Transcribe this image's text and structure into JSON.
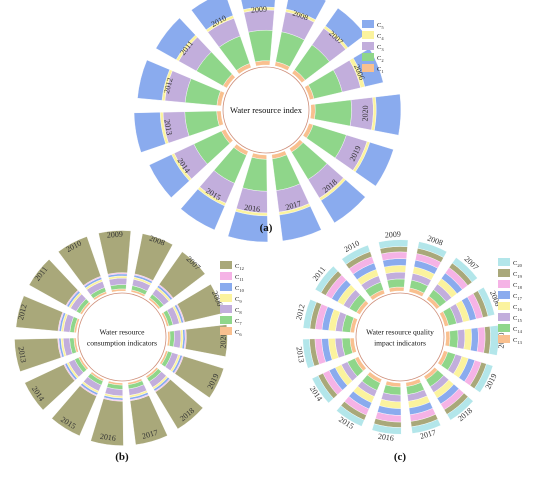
{
  "colors": {
    "C1": "#f9c08f",
    "C2": "#8fd68a",
    "C3": "#c2aedc",
    "C4": "#fbf39e",
    "C5": "#8aabee",
    "C6": "#f9c08f",
    "C7": "#8fd68a",
    "C8": "#c2aedc",
    "C9": "#fbf39e",
    "C10": "#8aabee",
    "C11": "#f5b3e6",
    "C12": "#a9a87a",
    "C13": "#f9c08f",
    "C14": "#8fd68a",
    "C15": "#c2aedc",
    "C16": "#fbf39e",
    "C17": "#8aabee",
    "C18": "#f5b3e6",
    "C19": "#a9a87a",
    "C20": "#b3e6ea"
  },
  "chart_data": [
    {
      "type": "radial-stacked-bar",
      "panel_label": "(a)",
      "center_label": [
        "Water resource index"
      ],
      "categories": [
        "2006",
        "2007",
        "2008",
        "2009",
        "2010",
        "2011",
        "2012",
        "2013",
        "2014",
        "2015",
        "2016",
        "2017",
        "2018",
        "2019",
        "2020"
      ],
      "legend": [
        {
          "key": "C5",
          "label": "C",
          "sub": "5"
        },
        {
          "key": "C4",
          "label": "C",
          "sub": "4"
        },
        {
          "key": "C3",
          "label": "C",
          "sub": "3"
        },
        {
          "key": "C2",
          "label": "C",
          "sub": "2"
        },
        {
          "key": "C1",
          "label": "C",
          "sub": "1"
        }
      ],
      "series": [
        {
          "key": "C1",
          "values": [
            0.03,
            0.03,
            0.03,
            0.03,
            0.03,
            0.03,
            0.03,
            0.03,
            0.03,
            0.03,
            0.03,
            0.03,
            0.03,
            0.03,
            0.03
          ]
        },
        {
          "key": "C2",
          "values": [
            0.2,
            0.21,
            0.21,
            0.21,
            0.2,
            0.21,
            0.22,
            0.22,
            0.21,
            0.21,
            0.22,
            0.22,
            0.22,
            0.24,
            0.25
          ]
        },
        {
          "key": "C3",
          "values": [
            0.13,
            0.14,
            0.14,
            0.14,
            0.13,
            0.14,
            0.14,
            0.15,
            0.15,
            0.15,
            0.15,
            0.15,
            0.15,
            0.15,
            0.15
          ]
        },
        {
          "key": "C4",
          "values": [
            0.03,
            0.02,
            0.02,
            0.02,
            0.02,
            0.02,
            0.02,
            0.02,
            0.02,
            0.02,
            0.02,
            0.02,
            0.02,
            0.02,
            0.02
          ]
        },
        {
          "key": "C5",
          "values": [
            0.13,
            0.15,
            0.15,
            0.16,
            0.17,
            0.16,
            0.17,
            0.18,
            0.17,
            0.18,
            0.18,
            0.18,
            0.18,
            0.17,
            0.17
          ]
        }
      ],
      "ylim": [
        0,
        1
      ]
    },
    {
      "type": "radial-stacked-bar",
      "panel_label": "(b)",
      "center_label": [
        "Water resource",
        "consumption indicators"
      ],
      "categories": [
        "2006",
        "2007",
        "2008",
        "2009",
        "2010",
        "2011",
        "2012",
        "2013",
        "2014",
        "2015",
        "2016",
        "2017",
        "2018",
        "2019",
        "2020"
      ],
      "legend": [
        {
          "key": "C12",
          "label": "C",
          "sub": "12"
        },
        {
          "key": "C11",
          "label": "C",
          "sub": "11"
        },
        {
          "key": "C10",
          "label": "C",
          "sub": "10"
        },
        {
          "key": "C9",
          "label": "C",
          "sub": "9"
        },
        {
          "key": "C8",
          "label": "C",
          "sub": "8"
        },
        {
          "key": "C7",
          "label": "C",
          "sub": "7"
        },
        {
          "key": "C6",
          "label": "C",
          "sub": "6"
        }
      ],
      "series": [
        {
          "key": "C6",
          "values": [
            0.02,
            0.02,
            0.02,
            0.02,
            0.02,
            0.02,
            0.02,
            0.02,
            0.02,
            0.02,
            0.02,
            0.02,
            0.02,
            0.02,
            0.02
          ]
        },
        {
          "key": "C7",
          "values": [
            0.04,
            0.04,
            0.04,
            0.04,
            0.04,
            0.04,
            0.04,
            0.04,
            0.04,
            0.04,
            0.04,
            0.04,
            0.04,
            0.04,
            0.04
          ]
        },
        {
          "key": "C8",
          "values": [
            0.06,
            0.06,
            0.06,
            0.06,
            0.06,
            0.06,
            0.06,
            0.06,
            0.06,
            0.06,
            0.06,
            0.06,
            0.06,
            0.06,
            0.06
          ]
        },
        {
          "key": "C9",
          "values": [
            0.02,
            0.02,
            0.02,
            0.02,
            0.02,
            0.02,
            0.02,
            0.02,
            0.02,
            0.02,
            0.02,
            0.02,
            0.02,
            0.02,
            0.02
          ]
        },
        {
          "key": "C10",
          "values": [
            0.02,
            0.02,
            0.02,
            0.02,
            0.02,
            0.02,
            0.02,
            0.02,
            0.02,
            0.02,
            0.02,
            0.02,
            0.02,
            0.02,
            0.02
          ]
        },
        {
          "key": "C11",
          "values": [
            0.01,
            0.01,
            0.01,
            0.01,
            0.01,
            0.01,
            0.01,
            0.01,
            0.01,
            0.01,
            0.01,
            0.01,
            0.01,
            0.01,
            0.01
          ]
        },
        {
          "key": "C12",
          "values": [
            0.36,
            0.37,
            0.38,
            0.39,
            0.39,
            0.39,
            0.39,
            0.4,
            0.4,
            0.4,
            0.41,
            0.41,
            0.4,
            0.39,
            0.38
          ]
        }
      ],
      "ylim": [
        0,
        1
      ]
    },
    {
      "type": "radial-stacked-bar",
      "panel_label": "(c)",
      "center_label": [
        "Water resource quality",
        "impact indicators"
      ],
      "categories": [
        "2006",
        "2007",
        "2008",
        "2009",
        "2010",
        "2011",
        "2012",
        "2013",
        "2014",
        "2015",
        "2016",
        "2017",
        "2018",
        "2019",
        "2020"
      ],
      "legend": [
        {
          "key": "C20",
          "label": "C",
          "sub": "20"
        },
        {
          "key": "C19",
          "label": "C",
          "sub": "19"
        },
        {
          "key": "C18",
          "label": "C",
          "sub": "18"
        },
        {
          "key": "C17",
          "label": "C",
          "sub": "17"
        },
        {
          "key": "C16",
          "label": "C",
          "sub": "16"
        },
        {
          "key": "C15",
          "label": "C",
          "sub": "15"
        },
        {
          "key": "C14",
          "label": "C",
          "sub": "14"
        },
        {
          "key": "C13",
          "label": "C",
          "sub": "13"
        }
      ],
      "series": [
        {
          "key": "C13",
          "values": [
            0.03,
            0.03,
            0.03,
            0.03,
            0.03,
            0.03,
            0.03,
            0.03,
            0.03,
            0.03,
            0.03,
            0.03,
            0.03,
            0.03,
            0.03
          ]
        },
        {
          "key": "C14",
          "values": [
            0.06,
            0.06,
            0.06,
            0.06,
            0.06,
            0.06,
            0.06,
            0.06,
            0.06,
            0.06,
            0.06,
            0.06,
            0.06,
            0.06,
            0.06
          ]
        },
        {
          "key": "C15",
          "values": [
            0.05,
            0.05,
            0.05,
            0.05,
            0.05,
            0.05,
            0.05,
            0.05,
            0.05,
            0.05,
            0.05,
            0.05,
            0.05,
            0.05,
            0.05
          ]
        },
        {
          "key": "C16",
          "values": [
            0.05,
            0.05,
            0.05,
            0.05,
            0.05,
            0.05,
            0.05,
            0.05,
            0.05,
            0.05,
            0.05,
            0.05,
            0.05,
            0.05,
            0.05
          ]
        },
        {
          "key": "C17",
          "values": [
            0.05,
            0.05,
            0.05,
            0.05,
            0.05,
            0.05,
            0.05,
            0.05,
            0.05,
            0.05,
            0.05,
            0.05,
            0.05,
            0.05,
            0.05
          ]
        },
        {
          "key": "C18",
          "values": [
            0.05,
            0.05,
            0.05,
            0.05,
            0.05,
            0.05,
            0.05,
            0.05,
            0.05,
            0.05,
            0.05,
            0.05,
            0.05,
            0.05,
            0.05
          ]
        },
        {
          "key": "C19",
          "values": [
            0.04,
            0.04,
            0.04,
            0.04,
            0.04,
            0.04,
            0.04,
            0.04,
            0.04,
            0.04,
            0.04,
            0.04,
            0.04,
            0.04,
            0.04
          ]
        },
        {
          "key": "C20",
          "values": [
            0.05,
            0.05,
            0.05,
            0.05,
            0.05,
            0.05,
            0.05,
            0.05,
            0.05,
            0.05,
            0.05,
            0.05,
            0.05,
            0.05,
            0.06
          ]
        }
      ],
      "ylim": [
        0,
        1
      ]
    }
  ]
}
